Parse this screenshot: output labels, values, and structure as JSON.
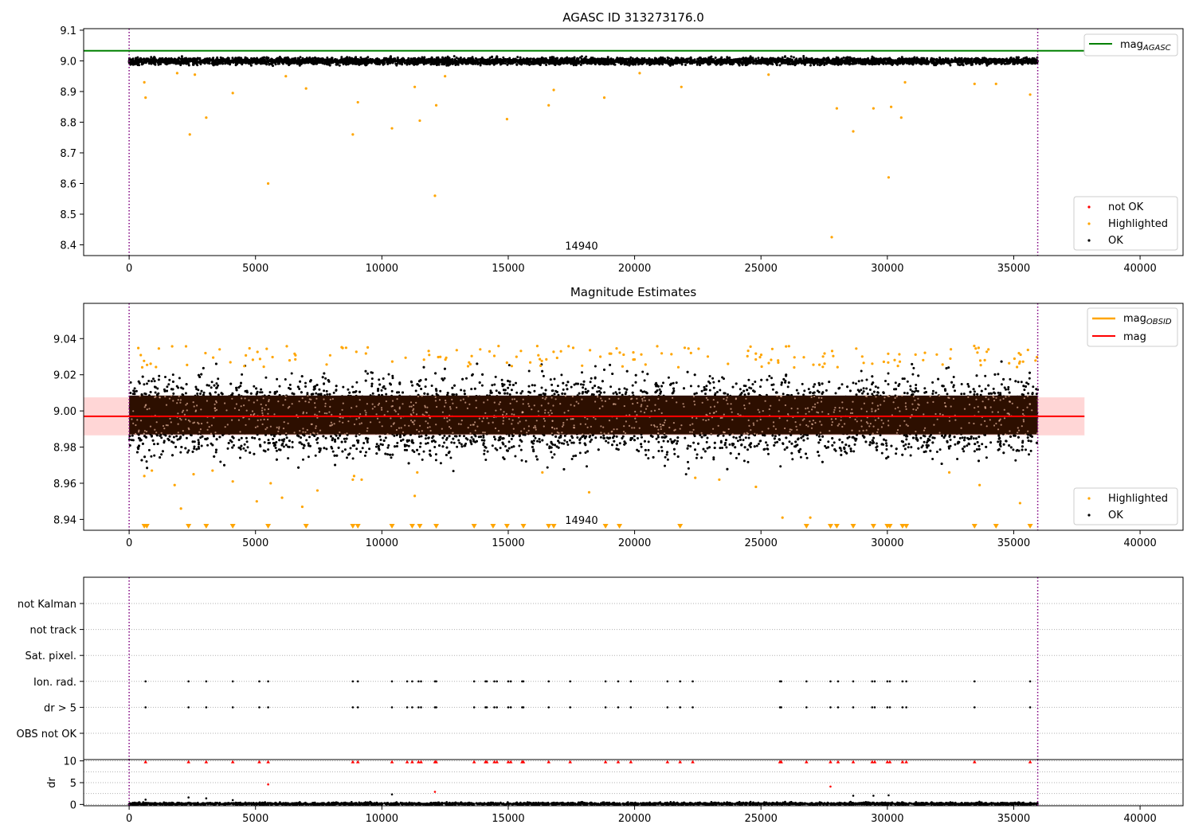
{
  "chart_data": [
    {
      "type": "scatter",
      "title": "AGASC ID 313273176.0",
      "xlim": [
        -1800,
        41700
      ],
      "ylim": [
        8.365,
        9.105
      ],
      "x_ticks": [
        0,
        5000,
        10000,
        15000,
        20000,
        25000,
        30000,
        35000,
        40000
      ],
      "y_ticks": [
        8.4,
        8.5,
        8.6,
        8.7,
        8.8,
        8.9,
        9.0,
        9.1
      ],
      "y_tick_decimals": 1,
      "obsid_label": {
        "text": "14940",
        "x": 17900,
        "y": 8.385
      },
      "vlines": [
        0,
        35950
      ],
      "ok_band": {
        "x_start": 0,
        "x_end": 35950,
        "center": 8.999,
        "spread": 0.012
      },
      "hlines": [
        {
          "name": "mag_AGASC",
          "y": 9.033,
          "color": "#008000",
          "x_start": -1800,
          "x_end": 37800
        }
      ],
      "line_legend": [
        {
          "name": "mag",
          "sub": "AGASC",
          "color": "#008000"
        }
      ],
      "point_legend": [
        {
          "name": "not OK",
          "color": "#ff0000"
        },
        {
          "name": "Highlighted",
          "color": "#ffa500"
        },
        {
          "name": "OK",
          "color": "#000000"
        }
      ],
      "highlighted_points": [
        [
          600,
          8.93
        ],
        [
          650,
          8.88
        ],
        [
          2400,
          8.76
        ],
        [
          3050,
          8.815
        ],
        [
          4100,
          8.895
        ],
        [
          5500,
          8.6
        ],
        [
          7000,
          8.91
        ],
        [
          8850,
          8.76
        ],
        [
          9050,
          8.865
        ],
        [
          10400,
          8.78
        ],
        [
          11300,
          8.915
        ],
        [
          11500,
          8.805
        ],
        [
          12150,
          8.855
        ],
        [
          12100,
          8.56
        ],
        [
          14950,
          8.81
        ],
        [
          16600,
          8.855
        ],
        [
          16800,
          8.905
        ],
        [
          18800,
          8.88
        ],
        [
          21850,
          8.915
        ],
        [
          27800,
          8.425
        ],
        [
          28000,
          8.845
        ],
        [
          28650,
          8.77
        ],
        [
          29450,
          8.845
        ],
        [
          30050,
          8.62
        ],
        [
          30150,
          8.85
        ],
        [
          30550,
          8.815
        ],
        [
          30700,
          8.93
        ],
        [
          33450,
          8.925
        ],
        [
          34300,
          8.925
        ],
        [
          35650,
          8.89
        ],
        [
          1900,
          8.96
        ],
        [
          2600,
          8.955
        ],
        [
          6200,
          8.95
        ],
        [
          12500,
          8.95
        ],
        [
          20200,
          8.96
        ],
        [
          25300,
          8.955
        ]
      ]
    },
    {
      "type": "scatter",
      "title": "Magnitude Estimates",
      "xlim": [
        -1800,
        41700
      ],
      "ylim": [
        8.934,
        9.0595
      ],
      "x_ticks": [
        0,
        5000,
        10000,
        15000,
        20000,
        25000,
        30000,
        35000,
        40000
      ],
      "y_ticks": [
        8.94,
        8.96,
        8.98,
        9.0,
        9.02,
        9.04
      ],
      "y_tick_decimals": 2,
      "obsid_label": {
        "text": "14940",
        "x": 17900,
        "y": 8.9375
      },
      "vlines": [
        0,
        35950
      ],
      "band": {
        "x_start": -1800,
        "x_end": 37800,
        "y_low": 8.9865,
        "y_high": 9.0075,
        "color": "#ffd6d6"
      },
      "dense_region": {
        "x_start": 0,
        "x_end": 35950,
        "y_low": 8.987,
        "y_high": 9.0085
      },
      "hlines": [
        {
          "name": "mag",
          "y": 8.997,
          "color": "#ff0000",
          "x_start": -1800,
          "x_end": 37800
        }
      ],
      "line_legend": [
        {
          "name": "mag",
          "sub": "OBSID",
          "color": "#ffa500"
        },
        {
          "name": "mag",
          "sub": "",
          "color": "#ff0000"
        }
      ],
      "point_legend": [
        {
          "name": "Highlighted",
          "color": "#ffa500"
        },
        {
          "name": "OK",
          "color": "#000000"
        }
      ],
      "lower_limit_markers": [
        600,
        700,
        2350,
        3050,
        4100,
        5500,
        7000,
        8850,
        9050,
        10400,
        11200,
        11500,
        12150,
        13650,
        14400,
        14950,
        15600,
        16600,
        16800,
        18850,
        19400,
        21800,
        26800,
        27750,
        28000,
        28650,
        29450,
        30000,
        30100,
        30600,
        30750,
        33450,
        34300,
        35650
      ],
      "highlighted_points": [
        [
          600,
          8.964
        ],
        [
          900,
          8.967
        ],
        [
          1800,
          8.959
        ],
        [
          2050,
          8.946
        ],
        [
          2550,
          8.965
        ],
        [
          3300,
          8.967
        ],
        [
          4100,
          8.961
        ],
        [
          5050,
          8.95
        ],
        [
          5600,
          8.96
        ],
        [
          6050,
          8.952
        ],
        [
          6850,
          8.947
        ],
        [
          7450,
          8.956
        ],
        [
          8850,
          8.962
        ],
        [
          8900,
          8.964
        ],
        [
          9200,
          8.962
        ],
        [
          11300,
          8.953
        ],
        [
          11400,
          8.966
        ],
        [
          16350,
          8.966
        ],
        [
          18200,
          8.955
        ],
        [
          22400,
          8.963
        ],
        [
          23350,
          8.962
        ],
        [
          24800,
          8.958
        ],
        [
          25850,
          8.941
        ],
        [
          26950,
          8.941
        ],
        [
          32450,
          8.966
        ],
        [
          33650,
          8.959
        ],
        [
          35250,
          8.949
        ]
      ]
    },
    {
      "type": "scatter",
      "title": "",
      "xlim": [
        -1800,
        41700
      ],
      "categories": [
        "not Kalman",
        "not track",
        "Sat. pixel.",
        "Ion. rad.",
        "dr > 5",
        "OBS not OK"
      ],
      "vlines": [
        0,
        35950
      ],
      "flag_x": [
        650,
        2350,
        3050,
        4100,
        5150,
        5500,
        8850,
        9050,
        10400,
        11000,
        11200,
        11450,
        11550,
        12100,
        12150,
        13650,
        14100,
        14150,
        14450,
        14550,
        15000,
        15100,
        15550,
        15600,
        16600,
        17450,
        18850,
        19350,
        19850,
        21300,
        21800,
        22300,
        25750,
        25800,
        26800,
        27750,
        28050,
        28650,
        29400,
        29500,
        30000,
        30100,
        30600,
        30750,
        33450,
        35650
      ],
      "flag_rows": [
        "Ion. rad.",
        "dr > 5"
      ]
    },
    {
      "type": "scatter",
      "title": "",
      "xlim": [
        -1800,
        41700
      ],
      "ylim": [
        -0.3,
        10.3
      ],
      "ylabel": "dr",
      "y_ticks": [
        0,
        5,
        10
      ],
      "vlines": [
        0,
        35950
      ],
      "capped_value": 10,
      "capped_x": [
        650,
        2350,
        3050,
        4100,
        5150,
        5500,
        8850,
        9050,
        10400,
        11000,
        11200,
        11450,
        11550,
        12100,
        12150,
        13650,
        14100,
        14150,
        14450,
        14550,
        15000,
        15100,
        15550,
        15600,
        16600,
        17450,
        18850,
        19350,
        19850,
        21300,
        21800,
        22300,
        25750,
        25800,
        26800,
        27750,
        28050,
        28650,
        29400,
        29500,
        30000,
        30100,
        30600,
        30750,
        33450,
        35650
      ],
      "red_points": [
        [
          5500,
          4.6
        ],
        [
          12100,
          2.9
        ],
        [
          27750,
          4.1
        ]
      ],
      "black_points": [
        [
          2350,
          1.6
        ],
        [
          3050,
          1.4
        ],
        [
          10400,
          2.3
        ],
        [
          28650,
          2.0
        ],
        [
          29450,
          2.0
        ],
        [
          30050,
          2.1
        ],
        [
          650,
          1.1
        ],
        [
          4100,
          1.0
        ]
      ]
    }
  ]
}
